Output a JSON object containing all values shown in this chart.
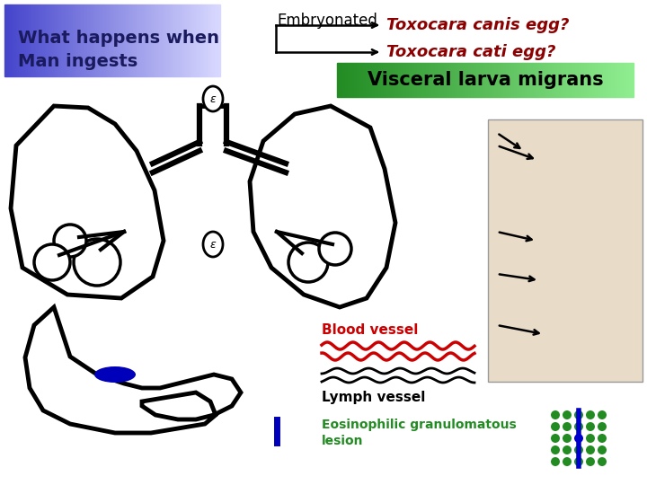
{
  "bg_color": "#ffffff",
  "title_box_text1": "What happens when",
  "title_box_text2": "Man ingests",
  "title_box_color_left": "#4444cc",
  "title_box_color_right": "#aaaaff",
  "embryonated_label": "Embryonated",
  "arrow1_label": "Toxocara canis egg?",
  "arrow2_label": "Toxocara cati egg?",
  "visceral_label": "Visceral larva migrans",
  "visceral_bg_left": "#228B22",
  "visceral_bg_right": "#90EE90",
  "blood_vessel_label": "Blood vessel",
  "blood_vessel_color": "#cc0000",
  "lymph_vessel_label": "Lymph vessel",
  "lymph_vessel_color": "#000000",
  "eosin_label1": "Eosinophilic granulomatous",
  "eosin_label2": "lesion",
  "eosin_color": "#228B22",
  "dot_color_green": "#228B22",
  "dot_color_blue": "#0000cc",
  "arrow_color": "#8B0000",
  "organ_line_color": "#000000",
  "blue_mark_color": "#0000bb"
}
